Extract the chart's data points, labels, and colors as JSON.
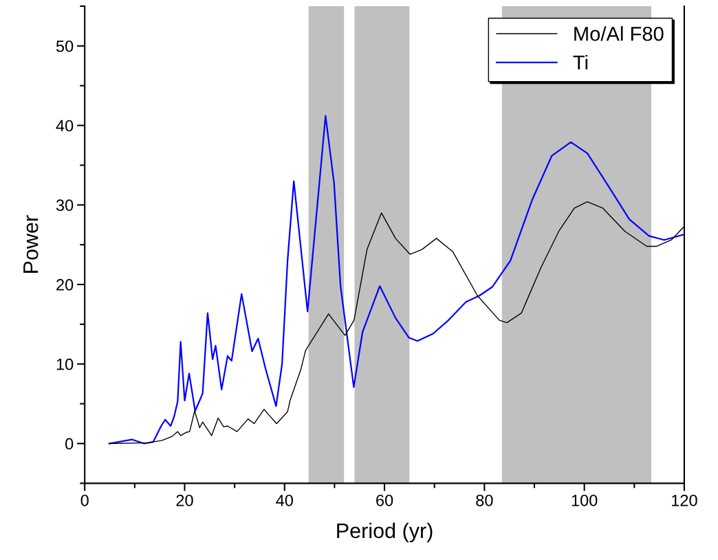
{
  "chart_data": {
    "type": "line",
    "xlabel": "Period (yr)",
    "ylabel": "Power",
    "xlim": [
      0,
      120
    ],
    "xticks": [
      0,
      {
        "value": 10,
        "label": null
      },
      20,
      {
        "value": 30,
        "label": null
      },
      40,
      {
        "value": 50,
        "label": null
      },
      60,
      {
        "value": 70,
        "label": null
      },
      80,
      {
        "value": 90,
        "label": null
      },
      100,
      {
        "value": 110,
        "label": null
      },
      120
    ],
    "ylim": [
      -5,
      55
    ],
    "yticks": [
      {
        "value": -5,
        "label": null
      },
      0,
      {
        "value": 5,
        "label": null
      },
      10,
      {
        "value": 15,
        "label": null
      },
      20,
      {
        "value": 25,
        "label": null
      },
      30,
      {
        "value": 35,
        "label": null
      },
      40,
      {
        "value": 45,
        "label": null
      },
      50,
      {
        "value": 55,
        "label": null
      }
    ],
    "grid": false,
    "legend": "top right",
    "bands": [
      {
        "axis": "x",
        "from": 44.8,
        "to": 51.9,
        "color": "#c0c0c0"
      },
      {
        "axis": "x",
        "from": 54.0,
        "to": 65.0,
        "color": "#c0c0c0"
      },
      {
        "axis": "x",
        "from": 83.5,
        "to": 113.4,
        "color": "#c0c0c0"
      }
    ],
    "series": [
      {
        "name": "Mo/Al F80",
        "color": "#000000",
        "x": [
          4.9,
          12.8,
          15.5,
          17.5,
          18.6,
          19.2,
          20.3,
          21.0,
          22.0,
          23.0,
          23.6,
          25.4,
          26.7,
          27.8,
          28.6,
          30.5,
          32.7,
          33.9,
          35.9,
          36.7,
          38.4,
          40.6,
          41.1,
          43.3,
          44.2,
          48.8,
          52.1,
          53.9,
          56.5,
          59.4,
          62.2,
          65.1,
          67.5,
          70.4,
          73.7,
          78.6,
          83.0,
          84.5,
          87.4,
          91.3,
          94.9,
          98.0,
          100.6,
          103.7,
          108.1,
          112.5,
          114.5,
          117.4,
          120
        ],
        "values": [
          0,
          0.1,
          0.4,
          0.9,
          1.5,
          1.0,
          1.4,
          1.5,
          4.1,
          2.0,
          2.7,
          1.0,
          3.2,
          2.1,
          2.2,
          1.5,
          3.1,
          2.5,
          4.3,
          3.7,
          2.5,
          4.0,
          5.4,
          9.4,
          11.7,
          16.3,
          13.6,
          15.5,
          24.4,
          29.0,
          25.8,
          23.8,
          24.4,
          25.8,
          24.1,
          18.6,
          15.5,
          15.2,
          16.4,
          22.1,
          26.7,
          29.6,
          30.4,
          29.6,
          26.7,
          24.8,
          24.8,
          25.6,
          27.3
        ]
      },
      {
        "name": "Ti",
        "color": "#0000ff",
        "x": [
          4.9,
          9.5,
          11.9,
          13.7,
          15.3,
          16.1,
          17.2,
          17.9,
          18.6,
          19.2,
          20.0,
          20.9,
          22.1,
          23.0,
          23.6,
          24.6,
          25.6,
          26.2,
          27.4,
          28.6,
          29.4,
          31.4,
          33.5,
          34.7,
          36.2,
          38.3,
          39.5,
          40.6,
          41.85,
          44.6,
          48.2,
          49.9,
          51.2,
          53.85,
          55.6,
          59.05,
          62.2,
          64.9,
          66.6,
          69.7,
          72.8,
          76.3,
          79.0,
          81.6,
          85.2,
          89.6,
          93.5,
          97.3,
          100.6,
          105.0,
          109.0,
          112.95,
          116.0,
          120
        ],
        "values": [
          0,
          0.5,
          0,
          0.2,
          2.2,
          3.0,
          2.2,
          3.4,
          5.3,
          12.8,
          5.4,
          8.8,
          4.1,
          5.4,
          6.3,
          16.4,
          10.6,
          12.3,
          6.8,
          11.0,
          10.4,
          18.8,
          11.6,
          13.2,
          9.4,
          4.7,
          10.0,
          23.0,
          33.0,
          16.6,
          41.2,
          32.8,
          19.8,
          7.1,
          14.0,
          19.8,
          15.8,
          13.3,
          12.9,
          13.8,
          15.5,
          17.8,
          18.6,
          19.7,
          23.0,
          30.7,
          36.2,
          37.9,
          36.5,
          32.2,
          28.2,
          26.1,
          25.6,
          26.3
        ]
      }
    ]
  }
}
